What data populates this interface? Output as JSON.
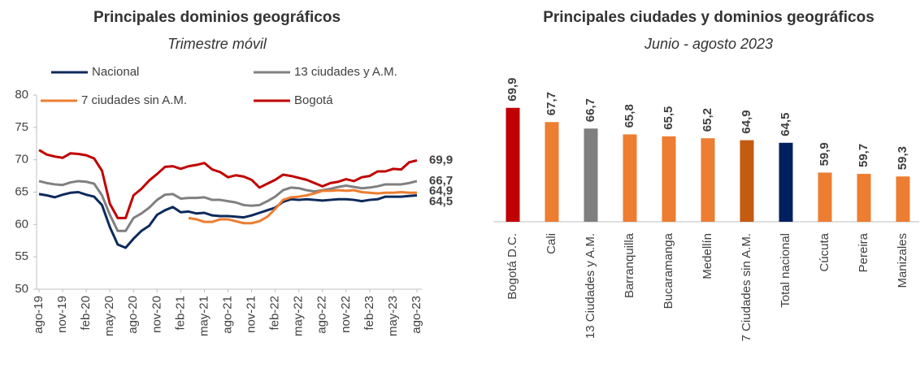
{
  "chart_data": [
    {
      "type": "line",
      "title": "Principales dominios geográficos",
      "subtitle": "Trimestre móvil",
      "categories": [
        "ago-19",
        null,
        null,
        "nov-19",
        null,
        null,
        "feb-20",
        null,
        null,
        "may-20",
        null,
        null,
        "ago-20",
        null,
        null,
        "nov-20",
        null,
        null,
        "feb-21",
        null,
        null,
        "may-21",
        null,
        null,
        "ago-21",
        null,
        null,
        "nov-21",
        null,
        null,
        "feb-22",
        null,
        null,
        "may-22",
        null,
        null,
        "ago-22",
        null,
        null,
        "nov-22",
        null,
        null,
        "feb-23",
        null,
        null,
        "may-23",
        null,
        null,
        "ago-23"
      ],
      "series": [
        {
          "name": "Nacional",
          "color": "#0d2a5c",
          "end_label": "64,5",
          "values": [
            64.7,
            64.5,
            64.2,
            64.6,
            64.9,
            65.0,
            64.6,
            64.3,
            63.0,
            59.6,
            56.9,
            56.4,
            57.8,
            59.0,
            59.8,
            61.5,
            62.2,
            62.7,
            61.9,
            62.0,
            61.7,
            61.8,
            61.4,
            61.3,
            61.3,
            61.2,
            61.1,
            61.4,
            61.8,
            62.2,
            62.6,
            63.5,
            63.9,
            63.8,
            63.9,
            63.8,
            63.7,
            63.8,
            63.9,
            63.9,
            63.8,
            63.6,
            63.8,
            63.9,
            64.3,
            64.3,
            64.3,
            64.4,
            64.5
          ]
        },
        {
          "name": "13 ciudades y A.M.",
          "color": "#808080",
          "end_label": "66,7",
          "values": [
            66.7,
            66.4,
            66.2,
            66.1,
            66.5,
            66.7,
            66.6,
            66.3,
            64.5,
            61.5,
            59.0,
            59.0,
            61.0,
            61.7,
            62.6,
            63.8,
            64.6,
            64.7,
            64.0,
            64.1,
            64.1,
            64.2,
            63.8,
            63.8,
            63.6,
            63.4,
            63.0,
            62.9,
            63.0,
            63.6,
            64.3,
            65.3,
            65.7,
            65.6,
            65.3,
            65.1,
            65.3,
            65.5,
            65.8,
            66.0,
            65.8,
            65.6,
            65.7,
            65.9,
            66.2,
            66.2,
            66.2,
            66.4,
            66.7
          ]
        },
        {
          "name": "7 ciudades sin A.M.",
          "color": "#ed7d31",
          "end_label": "64,9",
          "values": [
            null,
            null,
            null,
            null,
            null,
            null,
            null,
            null,
            null,
            null,
            null,
            null,
            null,
            null,
            null,
            null,
            null,
            null,
            null,
            61.0,
            60.8,
            60.4,
            60.4,
            60.8,
            60.8,
            60.5,
            60.2,
            60.2,
            60.5,
            61.2,
            62.4,
            63.8,
            64.2,
            64.3,
            64.5,
            64.8,
            65.2,
            65.2,
            65.3,
            65.2,
            65.3,
            65.0,
            64.9,
            64.8,
            64.9,
            64.9,
            65.0,
            64.9,
            64.9
          ]
        },
        {
          "name": "Bogotá",
          "color": "#c00000",
          "end_label": "69,9",
          "values": [
            71.5,
            70.8,
            70.5,
            70.3,
            71.0,
            70.9,
            70.7,
            70.2,
            68.3,
            63.2,
            61.0,
            61.0,
            64.5,
            65.5,
            66.8,
            67.8,
            68.9,
            69.0,
            68.6,
            69.0,
            69.2,
            69.5,
            68.5,
            68.1,
            67.3,
            67.6,
            67.4,
            66.9,
            65.7,
            66.3,
            66.9,
            67.7,
            67.5,
            67.2,
            66.9,
            66.4,
            65.9,
            66.4,
            66.6,
            67.0,
            66.7,
            67.3,
            67.5,
            68.2,
            68.2,
            68.6,
            68.5,
            69.6,
            69.9
          ]
        }
      ],
      "ylim": [
        50,
        80
      ],
      "yticks": [
        50,
        55,
        60,
        65,
        70,
        75,
        80
      ]
    },
    {
      "type": "bar",
      "title": "Principales ciudades y dominios geográficos",
      "subtitle": "Junio - agosto 2023",
      "categories": [
        "Bogotá D.C.",
        "Cali",
        "13 Ciudades y A.M.",
        "Barranquilla",
        "Bucaramanga",
        "Medellín",
        "7 Ciudades sin A.M.",
        "Total nacional",
        "Cúcuta",
        "Pereira",
        "Manizales"
      ],
      "values": [
        69.9,
        67.7,
        66.7,
        65.8,
        65.5,
        65.2,
        64.9,
        64.5,
        59.9,
        59.7,
        59.3
      ],
      "value_labels": [
        "69,9",
        "67,7",
        "66,7",
        "65,8",
        "65,5",
        "65,2",
        "64,9",
        "64,5",
        "59,9",
        "59,7",
        "59,3"
      ],
      "colors": [
        "#c00000",
        "#ed7d31",
        "#7f7f7f",
        "#ed7d31",
        "#ed7d31",
        "#ed7d31",
        "#c55a11",
        "#002060",
        "#ed7d31",
        "#ed7d31",
        "#ed7d31"
      ],
      "ylim": [
        52.3,
        72
      ]
    }
  ]
}
